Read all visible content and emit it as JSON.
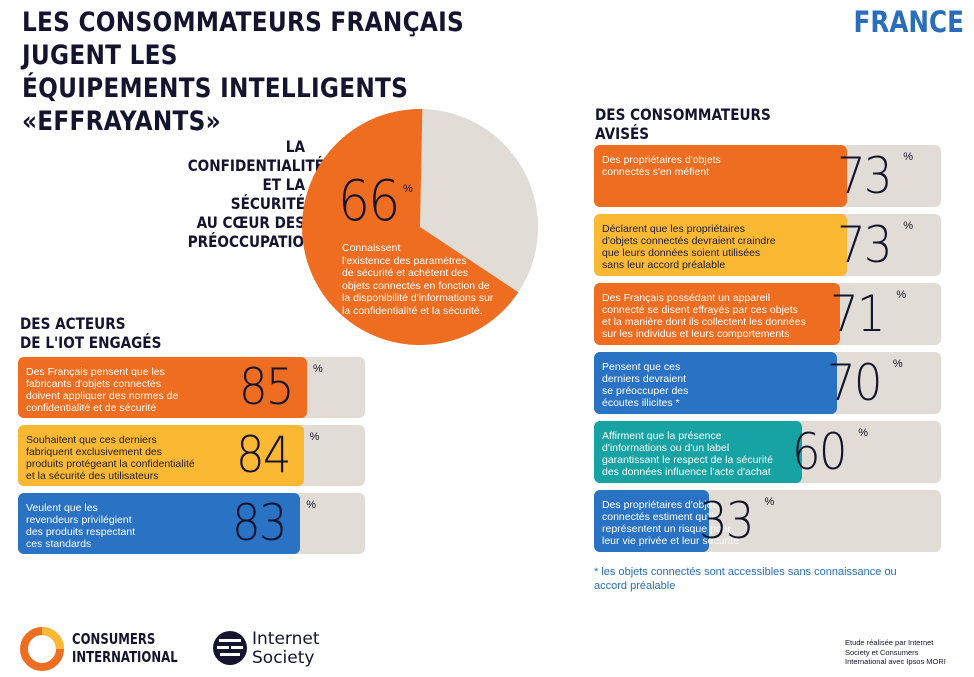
{
  "header": {
    "title": "LES CONSOMMATEURS  FRANÇAIS JUGENT LES\nÉQUIPEMENTS INTELLIGENTS\n«EFFRAYANTS»",
    "country": "FRANCE"
  },
  "pie": {
    "heading": "LA CONFIDENTIALITÉ\nET LA SÉCURITÉ\nAU CŒUR DES\nPRÉOCCUPATIONS",
    "value": 66,
    "value_label": "66",
    "percent_sign": "%",
    "text": "Connaissent\nl'existence des paramètres\nde sécurité et achètent des\nobjets connectés en fonction de\nla disponibilité d'informations sur\nla confidentialité et la sécurité.",
    "color_main": "#ee6d21",
    "color_rest": "#e1ddd6"
  },
  "left_section": {
    "heading": "DES ACTEURS\nDE L'IOT ENGAGÉS",
    "rows": [
      {
        "text": "Des Français pensent que les\nfabricants d'objets connectés\ndoivent appliquer des normes de\nconfidentialité et de sécurité",
        "value": 85,
        "label": "85",
        "pct": "%",
        "color": "#ee6d21"
      },
      {
        "text": "Souhaitent que ces derniers\nfabriquent exclusivement des\nproduits protégeant la confidentialité\net la sécurité des utilisateurs",
        "value": 84,
        "label": "84",
        "pct": "%",
        "color": "#fbb832"
      },
      {
        "text": "Veulent que les\nrevendeurs privilégient\ndes produits respectant\nces standards",
        "value": 83,
        "label": "83",
        "pct": "%",
        "color": "#2a73c4"
      }
    ]
  },
  "right_section": {
    "heading": "DES CONSOMMATEURS\nAVISÉS",
    "rows": [
      {
        "text": "Des propriétaires d'objets\nconnectés s'en méfient",
        "value": 73,
        "label": "73",
        "pct": "%",
        "color": "#ee6d21"
      },
      {
        "text": "Déclarent que les propriétaires\nd'objets connectés devraient craindre\nque leurs données soient utilisées\nsans leur accord préalable",
        "value": 73,
        "label": "73",
        "pct": "%",
        "color": "#fbb832"
      },
      {
        "text": "Des Français possédant un appareil\nconnecté se disent effrayés par ces objets\net la manière dont ils collectent les données\nsur les individus et leurs comportements",
        "value": 71,
        "label": "71",
        "pct": "%",
        "color": "#ee6d21"
      },
      {
        "text": "Pensent que ces\nderniers devraient\nse préoccuper des\nécoutes illicites *",
        "value": 70,
        "label": "70",
        "pct": "%",
        "color": "#2a73c4"
      },
      {
        "text": "Affirment que la présence\nd'informations ou d'un label\ngarantissant le respect de la sécurité\ndes données influence l'acte d'achat",
        "value": 60,
        "label": "60",
        "pct": "%",
        "color": "#17a3a3"
      },
      {
        "text": "Des propriétaires d'objets\nconnectés estiment qu'ils\nreprésentent un risque pour\nleur vie privée et leur sécurité",
        "value": 33,
        "label": "33",
        "pct": "%",
        "color": "#2a73c4"
      }
    ],
    "note": "* les objets connectés sont accessibles sans connaissance ou\naccord préalable"
  },
  "footer": {
    "ci_logo_text": "CONSUMERS\nINTERNATIONAL",
    "isoc_logo_text": "Internet\nSociety",
    "credit": "Etude réalisée par Internet\nSociety et Consumers\nInternational avec Ipsos MORI"
  }
}
